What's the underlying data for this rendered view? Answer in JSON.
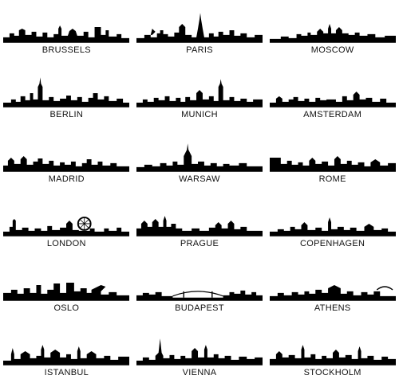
{
  "colors": {
    "silhouette": "#000000",
    "background": "#ffffff",
    "text": "#111111"
  },
  "cities": [
    {
      "name": "BRUSSELS",
      "icon": "brussels-skyline-icon"
    },
    {
      "name": "PARIS",
      "icon": "paris-skyline-icon"
    },
    {
      "name": "MOSCOW",
      "icon": "moscow-skyline-icon"
    },
    {
      "name": "BERLIN",
      "icon": "berlin-skyline-icon"
    },
    {
      "name": "MUNICH",
      "icon": "munich-skyline-icon"
    },
    {
      "name": "AMSTERDAM",
      "icon": "amsterdam-skyline-icon"
    },
    {
      "name": "MADRID",
      "icon": "madrid-skyline-icon"
    },
    {
      "name": "WARSAW",
      "icon": "warsaw-skyline-icon"
    },
    {
      "name": "ROME",
      "icon": "rome-skyline-icon"
    },
    {
      "name": "LONDON",
      "icon": "london-skyline-icon"
    },
    {
      "name": "PRAGUE",
      "icon": "prague-skyline-icon"
    },
    {
      "name": "COPENHAGEN",
      "icon": "copenhagen-skyline-icon"
    },
    {
      "name": "OSLO",
      "icon": "oslo-skyline-icon"
    },
    {
      "name": "BUDAPEST",
      "icon": "budapest-skyline-icon"
    },
    {
      "name": "ATHENS",
      "icon": "athens-skyline-icon"
    },
    {
      "name": "ISTANBUL",
      "icon": "istanbul-skyline-icon"
    },
    {
      "name": "VIENNA",
      "icon": "vienna-skyline-icon"
    },
    {
      "name": "STOCKHOLM",
      "icon": "stockholm-skyline-icon"
    }
  ]
}
